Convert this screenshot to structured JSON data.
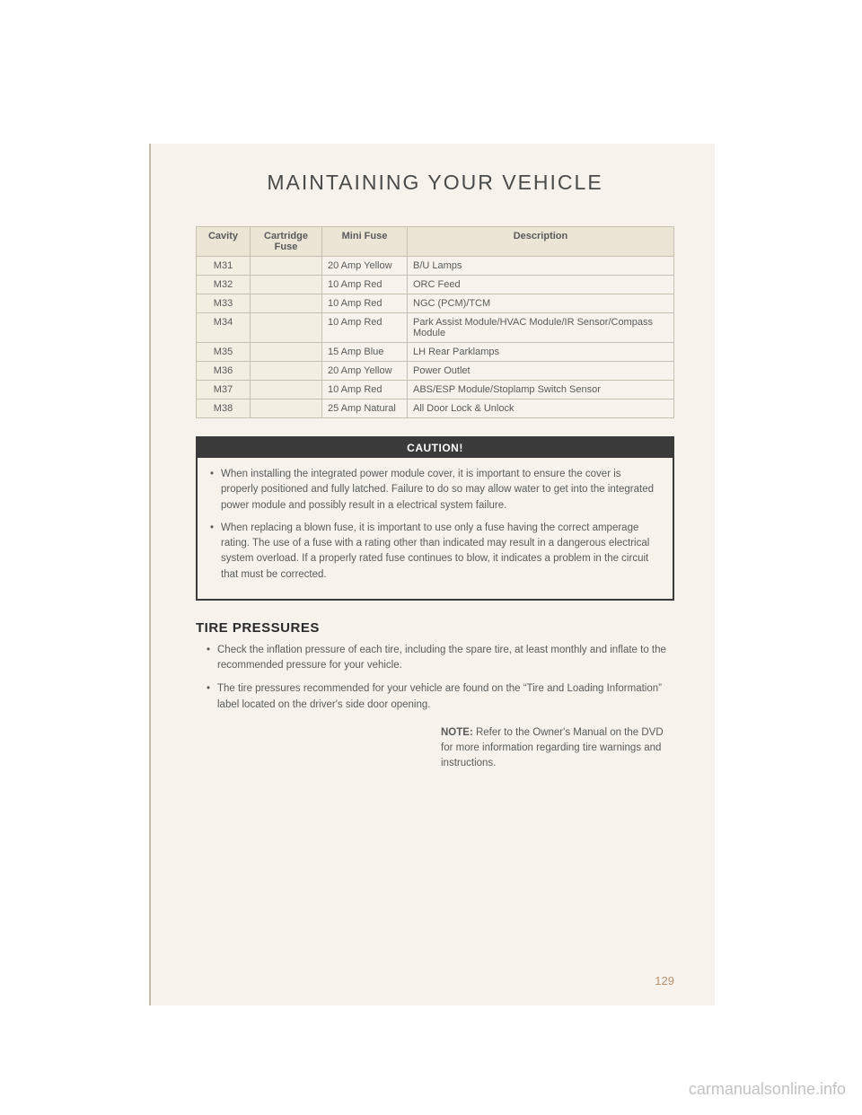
{
  "page": {
    "title": "MAINTAINING YOUR VEHICLE",
    "number": "129"
  },
  "fuse_table": {
    "headers": [
      "Cavity",
      "Cartridge Fuse",
      "Mini Fuse",
      "Description"
    ],
    "rows": [
      {
        "cavity": "M31",
        "cart": "",
        "mini": "20 Amp Yellow",
        "desc": "B/U Lamps"
      },
      {
        "cavity": "M32",
        "cart": "",
        "mini": "10 Amp Red",
        "desc": "ORC Feed"
      },
      {
        "cavity": "M33",
        "cart": "",
        "mini": "10 Amp Red",
        "desc": "NGC (PCM)/TCM"
      },
      {
        "cavity": "M34",
        "cart": "",
        "mini": "10 Amp Red",
        "desc": "Park Assist Module/HVAC Module/IR Sensor/Compass Module"
      },
      {
        "cavity": "M35",
        "cart": "",
        "mini": "15 Amp Blue",
        "desc": "LH Rear Parklamps"
      },
      {
        "cavity": "M36",
        "cart": "",
        "mini": "20 Amp Yellow",
        "desc": "Power Outlet"
      },
      {
        "cavity": "M37",
        "cart": "",
        "mini": "10 Amp Red",
        "desc": "ABS/ESP Module/Stoplamp Switch Sensor"
      },
      {
        "cavity": "M38",
        "cart": "",
        "mini": "25 Amp Natural",
        "desc": "All Door Lock & Unlock"
      }
    ]
  },
  "caution": {
    "title": "CAUTION!",
    "items": [
      "When installing the integrated power module cover, it is important to ensure the cover is properly positioned and fully latched. Failure to do so may allow water to get into the integrated power module and possibly result in a electrical system failure.",
      "When replacing a blown fuse, it is important to use only a fuse having the correct amperage rating. The use of a fuse with a rating other than indicated may result in a dangerous electrical system overload. If a properly rated fuse continues to blow, it indicates a problem in the circuit that must be corrected."
    ]
  },
  "tire_pressures": {
    "heading": "TIRE PRESSURES",
    "items": [
      "Check the inflation pressure of each tire, including the spare tire, at least monthly and inflate to the recommended pressure for your vehicle.",
      "The tire pressures recommended for your vehicle are found on the “Tire and Loading Information” label located on the driver's side door opening."
    ],
    "note_label": "NOTE:",
    "note_text": "Refer to the Owner's Manual on the DVD for more information regarding tire warnings and instructions."
  },
  "watermark": "carmanualsonline.info",
  "colors": {
    "page_bg": "#f7f3ec",
    "border": "#c5c0b0",
    "header_bg": "#ebe5d6",
    "text": "#5a5a5a",
    "page_num": "#b89070"
  }
}
